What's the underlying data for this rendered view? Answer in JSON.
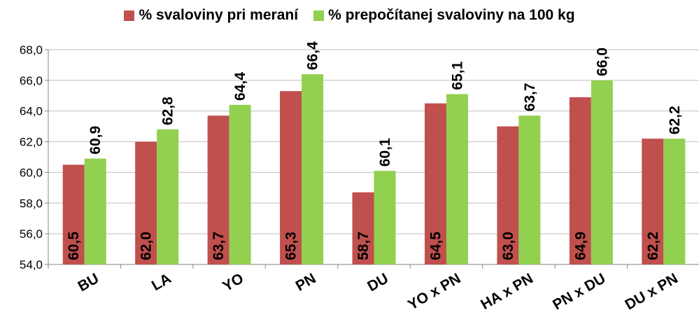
{
  "chart_data": {
    "type": "bar",
    "categories": [
      "BU",
      "LA",
      "YO",
      "PN",
      "DU",
      "YO x PN",
      "HA x PN",
      "PN x DU",
      "DU x PN"
    ],
    "series": [
      {
        "name": "% svaloviny pri meraní",
        "color": "#c0504d",
        "values": [
          60.5,
          62.0,
          63.7,
          65.3,
          58.7,
          64.5,
          63.0,
          64.9,
          62.2
        ],
        "labels": [
          "60,5",
          "62,0",
          "63,7",
          "65,3",
          "58,7",
          "64,5",
          "63,0",
          "64,9",
          "62,2"
        ]
      },
      {
        "name": "% prepočítanej svaloviny na 100 kg",
        "color": "#92d050",
        "values": [
          60.9,
          62.8,
          64.4,
          66.4,
          60.1,
          65.1,
          63.7,
          66.0,
          62.2
        ],
        "labels": [
          "60,9",
          "62,8",
          "64,4",
          "66,4",
          "60,1",
          "65,1",
          "63,7",
          "66,0",
          "62,2"
        ]
      }
    ],
    "ylim": [
      54.0,
      68.0
    ],
    "yticks": [
      "54,0",
      "56,0",
      "58,0",
      "60,0",
      "62,0",
      "64,0",
      "66,0",
      "68,0"
    ],
    "ytick_values": [
      54,
      56,
      58,
      60,
      62,
      64,
      66,
      68
    ],
    "grid": true,
    "legend_position": "top"
  }
}
